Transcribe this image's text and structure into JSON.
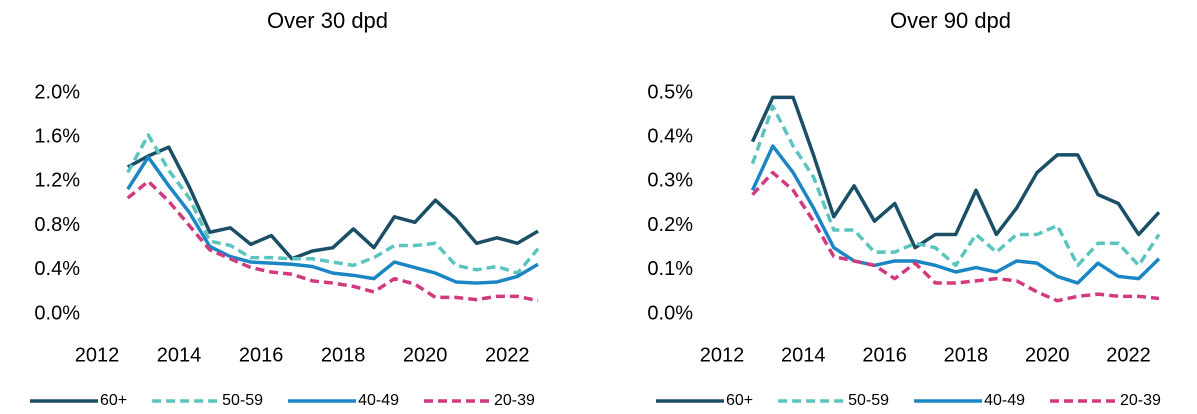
{
  "chart_data": [
    {
      "type": "line",
      "title": "Over 30 dpd",
      "x": [
        2012.75,
        2013.25,
        2013.75,
        2014.25,
        2014.75,
        2015.25,
        2015.75,
        2016.25,
        2016.75,
        2017.25,
        2017.75,
        2018.25,
        2018.75,
        2019.25,
        2019.75,
        2020.25,
        2020.75,
        2021.25,
        2021.75,
        2022.25,
        2022.75
      ],
      "xlim": [
        2012,
        2022.75
      ],
      "xticks": [
        2012,
        2014,
        2016,
        2018,
        2020,
        2022
      ],
      "ylim": [
        0,
        2.0
      ],
      "yticks": [
        {
          "value": 0,
          "label": "0.0%"
        },
        {
          "value": 0.4,
          "label": "0.4%"
        },
        {
          "value": 0.8,
          "label": "0.8%"
        },
        {
          "value": 1.2,
          "label": "1.2%"
        },
        {
          "value": 1.6,
          "label": "1.6%"
        },
        {
          "value": 2.0,
          "label": "2.0%"
        }
      ],
      "series": [
        {
          "name": "60+",
          "color": "#1b4f66",
          "dashed": false,
          "values": [
            1.33,
            1.43,
            1.51,
            1.15,
            0.74,
            0.78,
            0.63,
            0.71,
            0.5,
            0.57,
            0.6,
            0.77,
            0.6,
            0.88,
            0.83,
            1.03,
            0.86,
            0.64,
            0.69,
            0.64,
            0.75
          ]
        },
        {
          "name": "50-59",
          "color": "#5cc4bf",
          "dashed": true,
          "values": [
            1.28,
            1.62,
            1.3,
            1.05,
            0.66,
            0.62,
            0.51,
            0.51,
            0.5,
            0.5,
            0.47,
            0.44,
            0.51,
            0.62,
            0.62,
            0.64,
            0.44,
            0.4,
            0.43,
            0.37,
            0.59
          ]
        },
        {
          "name": "40-49",
          "color": "#1b86c4",
          "dashed": false,
          "values": [
            1.13,
            1.42,
            1.16,
            0.92,
            0.61,
            0.52,
            0.47,
            0.46,
            0.45,
            0.43,
            0.37,
            0.35,
            0.32,
            0.47,
            0.42,
            0.37,
            0.29,
            0.28,
            0.29,
            0.34,
            0.45
          ]
        },
        {
          "name": "20-39",
          "color": "#d23a7f",
          "dashed": true,
          "values": [
            1.05,
            1.2,
            1.02,
            0.8,
            0.58,
            0.5,
            0.42,
            0.38,
            0.36,
            0.3,
            0.28,
            0.25,
            0.2,
            0.32,
            0.27,
            0.15,
            0.15,
            0.13,
            0.16,
            0.16,
            0.12
          ]
        }
      ]
    },
    {
      "type": "line",
      "title": "Over 90 dpd",
      "x": [
        2012.75,
        2013.25,
        2013.75,
        2014.25,
        2014.75,
        2015.25,
        2015.75,
        2016.25,
        2016.75,
        2017.25,
        2017.75,
        2018.25,
        2018.75,
        2019.25,
        2019.75,
        2020.25,
        2020.75,
        2021.25,
        2021.75,
        2022.25,
        2022.75
      ],
      "xlim": [
        2012,
        2022.75
      ],
      "xticks": [
        2012,
        2014,
        2016,
        2018,
        2020,
        2022
      ],
      "ylim": [
        0,
        0.5
      ],
      "yticks": [
        {
          "value": 0,
          "label": "0.0%"
        },
        {
          "value": 0.1,
          "label": "0.1%"
        },
        {
          "value": 0.2,
          "label": "0.2%"
        },
        {
          "value": 0.3,
          "label": "0.3%"
        },
        {
          "value": 0.4,
          "label": "0.4%"
        },
        {
          "value": 0.5,
          "label": "0.5%"
        }
      ],
      "series": [
        {
          "name": "60+",
          "color": "#1b4f66",
          "dashed": false,
          "values": [
            0.39,
            0.49,
            0.49,
            0.36,
            0.22,
            0.29,
            0.21,
            0.25,
            0.15,
            0.18,
            0.18,
            0.28,
            0.18,
            0.24,
            0.32,
            0.36,
            0.36,
            0.27,
            0.25,
            0.18,
            0.23
          ]
        },
        {
          "name": "50-59",
          "color": "#5cc4bf",
          "dashed": true,
          "values": [
            0.34,
            0.47,
            0.38,
            0.31,
            0.19,
            0.19,
            0.14,
            0.14,
            0.16,
            0.15,
            0.11,
            0.18,
            0.14,
            0.18,
            0.18,
            0.2,
            0.11,
            0.16,
            0.16,
            0.11,
            0.18
          ]
        },
        {
          "name": "40-49",
          "color": "#1b86c4",
          "dashed": false,
          "values": [
            0.28,
            0.38,
            0.32,
            0.24,
            0.15,
            0.12,
            0.11,
            0.12,
            0.12,
            0.11,
            0.095,
            0.105,
            0.095,
            0.12,
            0.115,
            0.085,
            0.07,
            0.115,
            0.085,
            0.08,
            0.125
          ]
        },
        {
          "name": "20-39",
          "color": "#d23a7f",
          "dashed": true,
          "values": [
            0.27,
            0.32,
            0.28,
            0.21,
            0.13,
            0.12,
            0.11,
            0.08,
            0.115,
            0.07,
            0.07,
            0.075,
            0.08,
            0.075,
            0.05,
            0.03,
            0.04,
            0.045,
            0.04,
            0.04,
            0.035
          ]
        }
      ]
    }
  ]
}
